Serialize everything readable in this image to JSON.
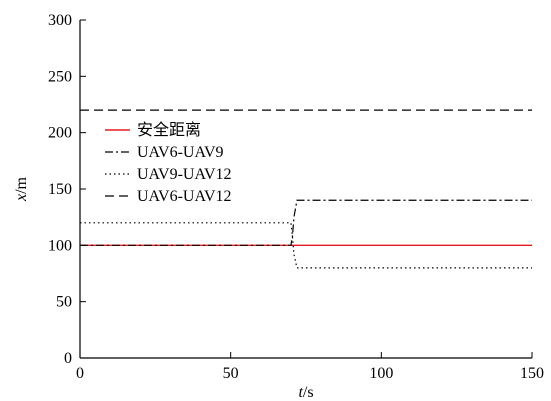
{
  "chart_data": {
    "type": "line",
    "xlabel": {
      "var": "t",
      "unit": "/s"
    },
    "ylabel": {
      "var": "x",
      "unit": "/m"
    },
    "xlim": [
      0,
      150
    ],
    "ylim": [
      0,
      300
    ],
    "xticks": [
      0,
      50,
      100,
      150
    ],
    "yticks": [
      0,
      50,
      100,
      150,
      200,
      250,
      300
    ],
    "grid": false,
    "legend_placement": "center-left",
    "series": [
      {
        "name": "安全距离",
        "style": "solid",
        "color": "#e8191f",
        "x": [
          0,
          150
        ],
        "y": [
          100,
          100
        ]
      },
      {
        "name": "UAV6-UAV9",
        "style": "dashdot",
        "color": "#000000",
        "x": [
          0,
          70,
          70.5,
          71,
          72,
          150
        ],
        "y": [
          100,
          100,
          108,
          125,
          140,
          140
        ]
      },
      {
        "name": "UAV9-UAV12",
        "style": "dotted",
        "color": "#000000",
        "x": [
          0,
          70,
          70.5,
          71,
          72,
          150
        ],
        "y": [
          120,
          120,
          108,
          92,
          80,
          80
        ]
      },
      {
        "name": "UAV6-UAV12",
        "style": "dashed",
        "color": "#000000",
        "x": [
          0,
          150
        ],
        "y": [
          220,
          220
        ]
      }
    ]
  }
}
